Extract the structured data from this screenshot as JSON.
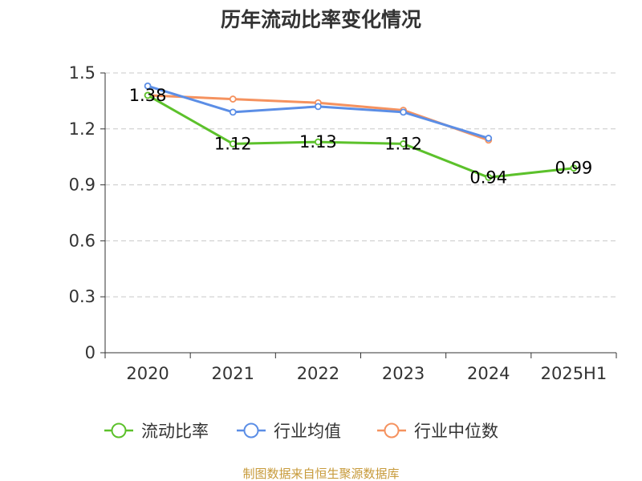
{
  "chart_data": {
    "type": "line",
    "title": "历年流动比率变化情况",
    "categories": [
      "2020",
      "2021",
      "2022",
      "2023",
      "2024",
      "2025H1"
    ],
    "ylim": [
      0,
      1.5
    ],
    "yticks": [
      "0",
      "0.3",
      "0.6",
      "0.9",
      "1.2",
      "1.5"
    ],
    "yticks_values": [
      0,
      0.3,
      0.6,
      0.9,
      1.2,
      1.5
    ],
    "grid": true,
    "legend_position": "bottom",
    "series": [
      {
        "name": "流动比率",
        "color": "#5cc12b",
        "values": [
          1.38,
          1.12,
          1.13,
          1.12,
          0.94,
          0.99
        ],
        "labels": [
          "1.38",
          "1.12",
          "1.13",
          "1.12",
          "0.94",
          "0.99"
        ]
      },
      {
        "name": "行业均值",
        "color": "#5b8ee6",
        "values": [
          1.43,
          1.29,
          1.32,
          1.29,
          1.15,
          null
        ]
      },
      {
        "name": "行业中位数",
        "color": "#f5925f",
        "values": [
          1.38,
          1.36,
          1.34,
          1.3,
          1.14,
          null
        ]
      }
    ],
    "source": "制图数据来自恒生聚源数据库",
    "source_color": "#c79a3a"
  }
}
